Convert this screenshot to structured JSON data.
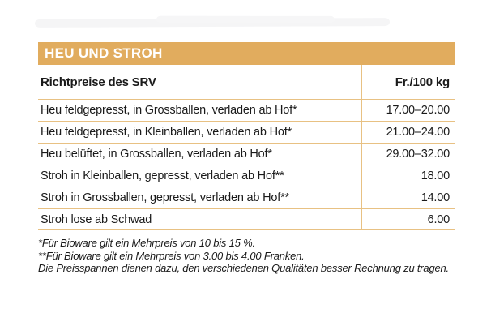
{
  "section": {
    "title": "HEU UND STROH"
  },
  "table": {
    "header": {
      "left": "Richtpreise des SRV",
      "right": "Fr./100 kg"
    },
    "rows": [
      {
        "label": "Heu feldgepresst, in Grossballen, verladen ab Hof*",
        "price": "17.00–20.00"
      },
      {
        "label": "Heu feldgepresst, in Kleinballen, verladen ab Hof*",
        "price": "21.00–24.00"
      },
      {
        "label": "Heu belüftet, in Grossballen, verladen ab Hof*",
        "price": "29.00–32.00"
      },
      {
        "label": "Stroh in Kleinballen, gepresst, verladen ab Hof**",
        "price": "18.00"
      },
      {
        "label": "Stroh in Grossballen, gepresst, verladen ab Hof**",
        "price": "14.00"
      },
      {
        "label": "Stroh lose ab Schwad",
        "price": "6.00"
      }
    ]
  },
  "footnotes": [
    "*Für Bioware gilt ein Mehrpreis von 10 bis 15 %.",
    "**Für Bioware gilt ein Mehrpreis von 3.00 bis 4.00 Franken.",
    "Die Preisspannen dienen dazu, den verschiedenen Qualitäten besser Rechnung zu tragen."
  ],
  "colors": {
    "accent_bar": "#e1ac5e",
    "rule_lines": "#e8c183",
    "title_text": "#ffffff",
    "body_text": "#1a1a1a",
    "smear": "#f5f5f6"
  }
}
